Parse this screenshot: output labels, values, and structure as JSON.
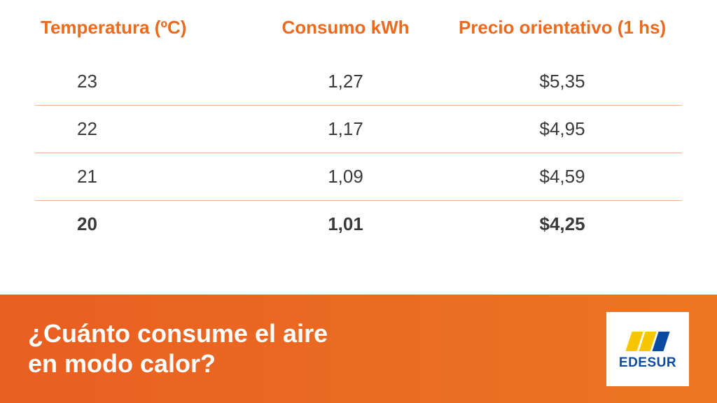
{
  "colors": {
    "accent": "#eb6a1e",
    "row_border": "#f2b38a",
    "body_text": "#3a3a3a",
    "footer_bg_start": "#e95e21",
    "footer_bg_end": "#eb7723",
    "logo_yellow": "#f7c600",
    "logo_blue": "#0a4aa1",
    "logo_text": "#0a4aa1"
  },
  "table": {
    "columns": [
      "Temperatura (ºC)",
      "Consumo kWh",
      "Precio orientativo (1 hs)"
    ],
    "rows": [
      [
        "23",
        "1,27",
        "$5,35"
      ],
      [
        "22",
        "1,17",
        "$4,95"
      ],
      [
        "21",
        "1,09",
        "$4,59"
      ],
      [
        "20",
        "1,01",
        "$4,25"
      ]
    ]
  },
  "footer": {
    "title_line1": "¿Cuánto consume el aire",
    "title_line2": "en modo calor?",
    "logo_text": "EDESUR"
  }
}
